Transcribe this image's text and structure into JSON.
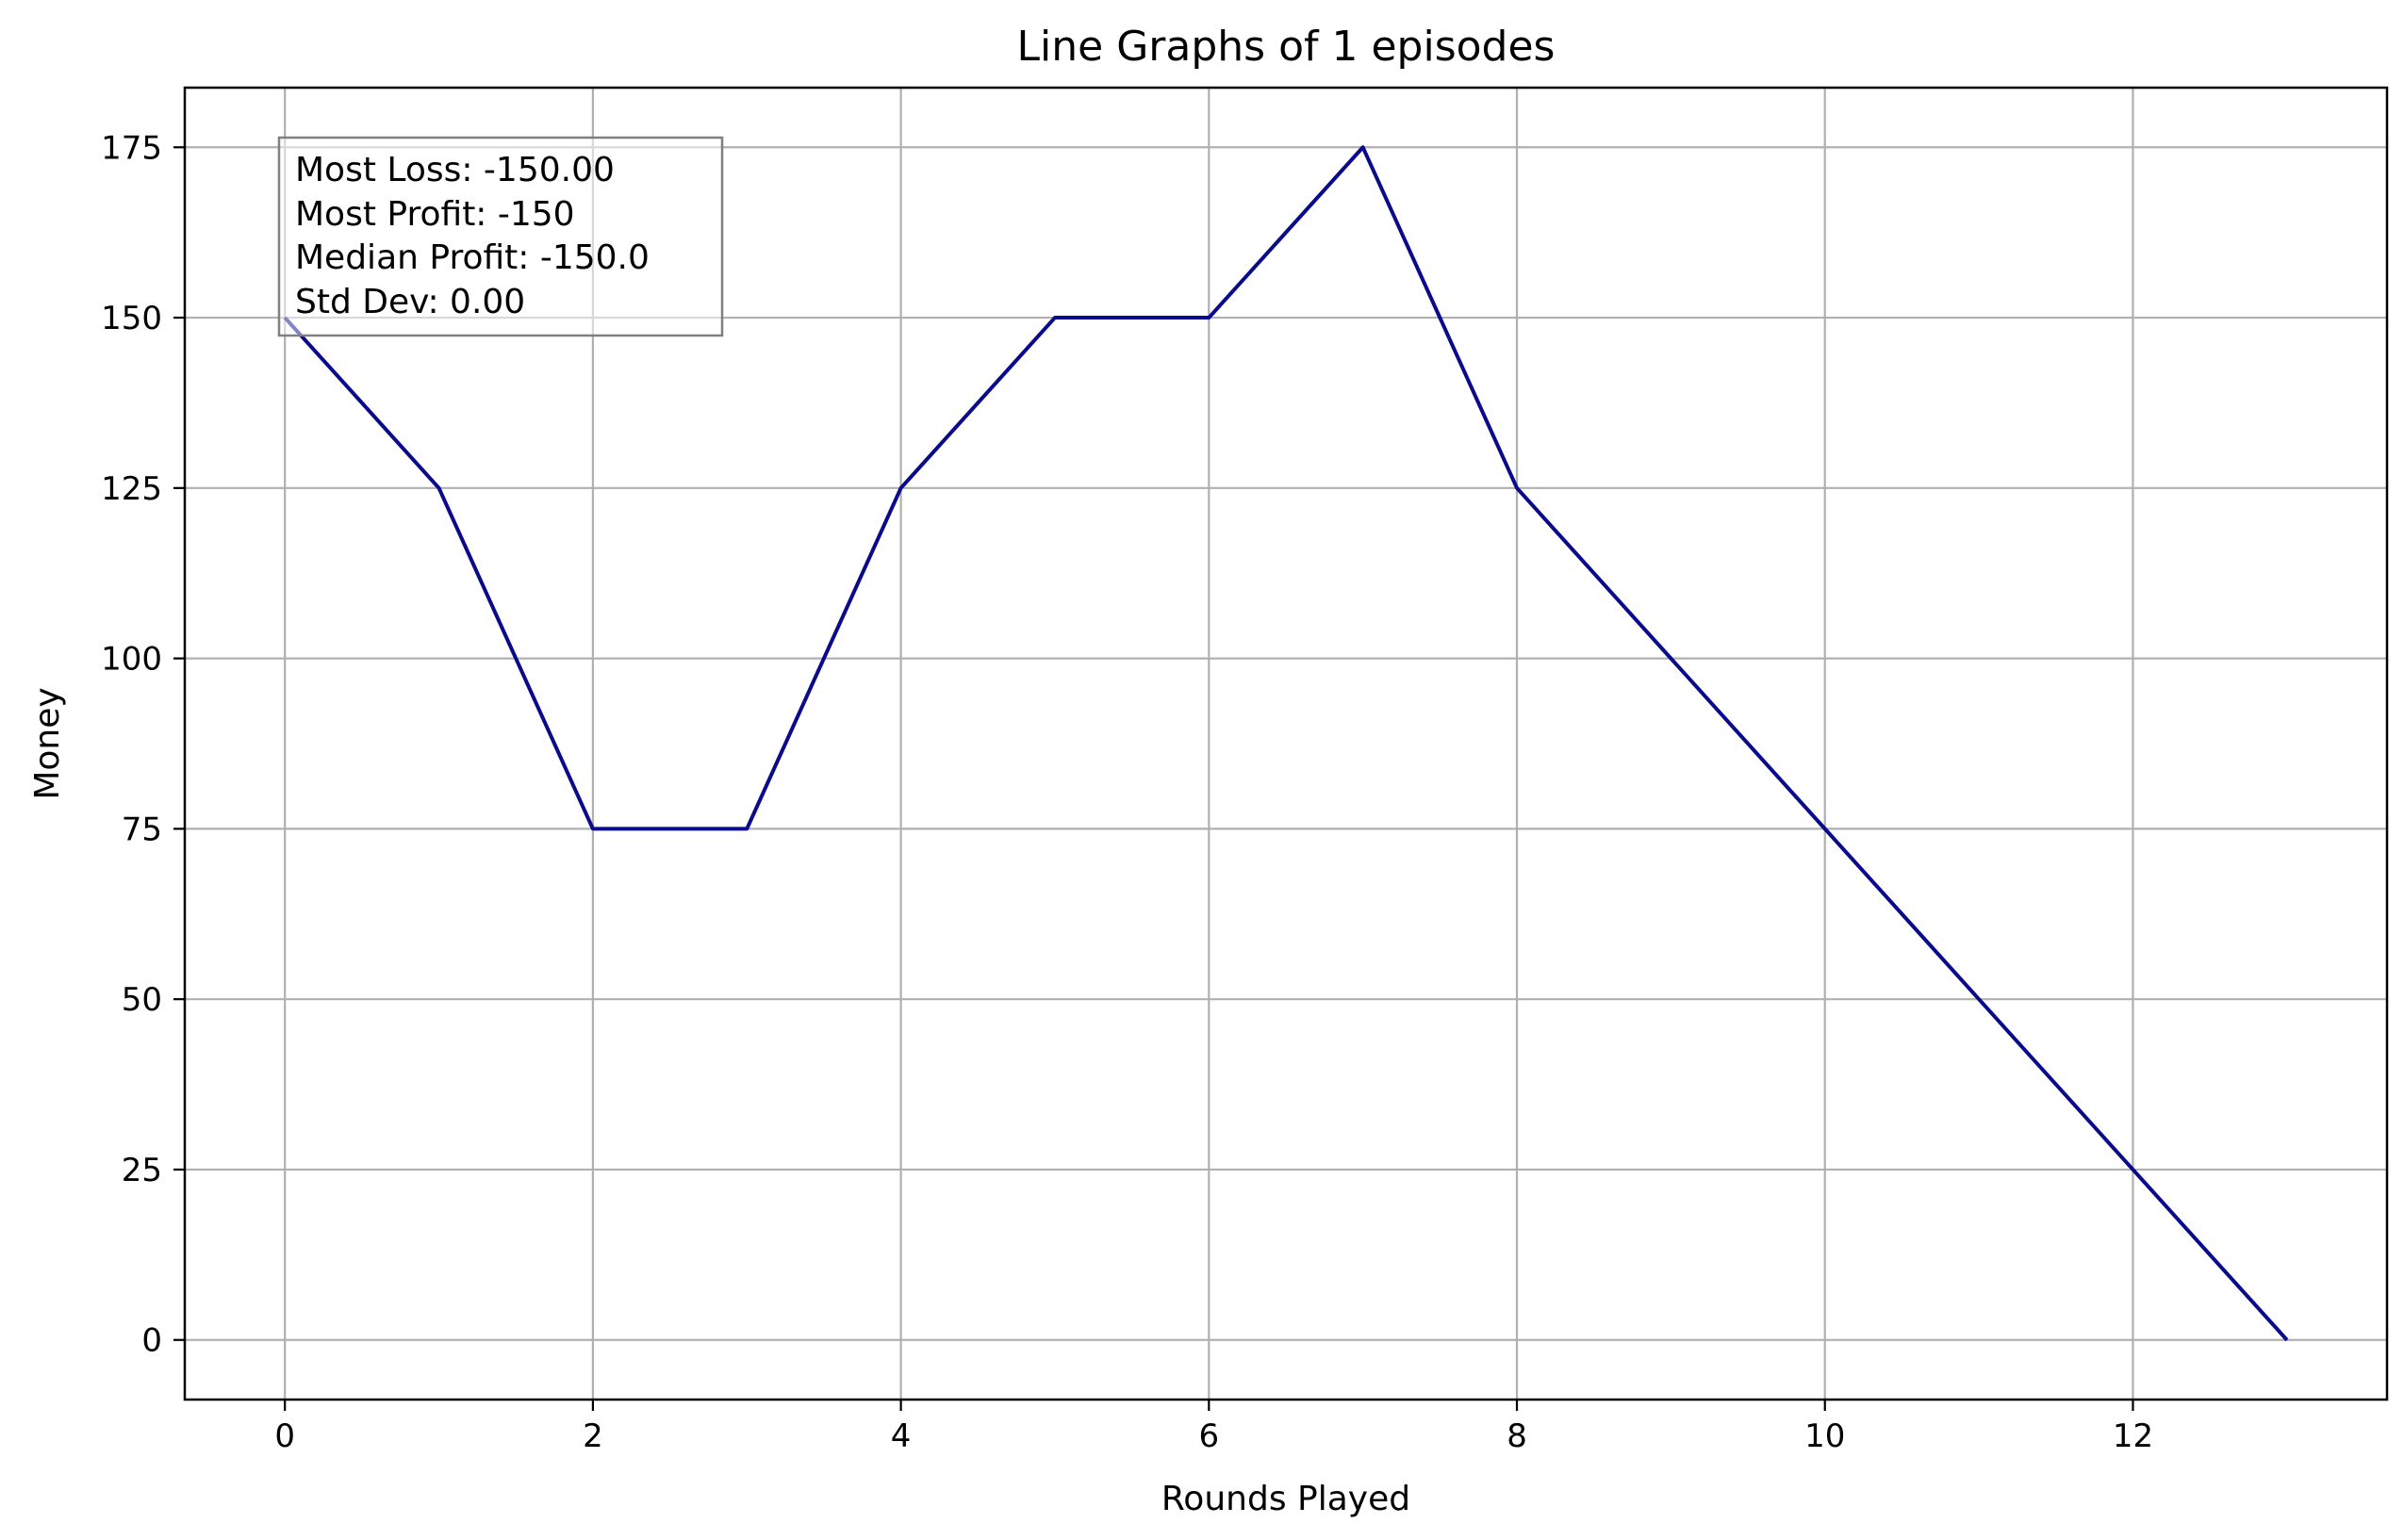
{
  "chart_data": {
    "type": "line",
    "title": "Line Graphs of 1 episodes",
    "xlabel": "Rounds Played",
    "ylabel": "Money",
    "x": [
      0,
      1,
      2,
      3,
      4,
      5,
      6,
      7,
      8,
      9,
      10,
      11,
      12,
      13
    ],
    "series": [
      {
        "values": [
          150,
          125,
          75,
          75,
          125,
          150,
          150,
          175,
          125,
          100,
          75,
          50,
          25,
          0
        ]
      }
    ],
    "xlim": [
      -0.65,
      13.65
    ],
    "ylim": [
      -8.75,
      183.75
    ],
    "xticks": [
      0,
      2,
      4,
      6,
      8,
      10,
      12
    ],
    "yticks": [
      0,
      25,
      50,
      75,
      100,
      125,
      150,
      175
    ],
    "grid": true,
    "annotation": {
      "placement": "top-left",
      "lines": [
        "Most Loss: -150.00",
        "Most Profit: -150",
        "Median Profit: -150.0",
        "Std Dev: 0.00"
      ]
    },
    "colors": {
      "line": "#0a0a8c",
      "grid": "#b0b0b0",
      "axes": "#000000"
    }
  }
}
